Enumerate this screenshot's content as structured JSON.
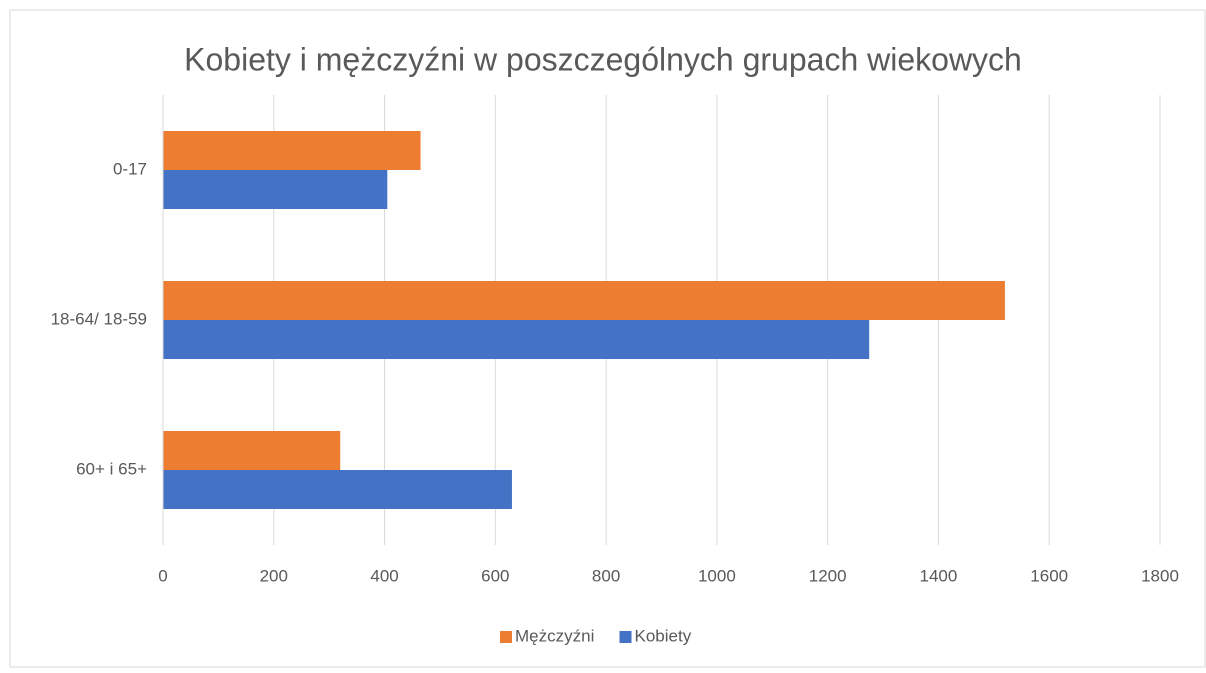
{
  "chart_data": {
    "type": "hbar",
    "title": "Kobiety i mężczyźni w poszczególnych grupach wiekowych",
    "categories": [
      "0-17",
      "18-64/ 18-59",
      "60+ i 65+"
    ],
    "series": [
      {
        "name": "Mężczyźni",
        "color": "#ed7d31",
        "values": [
          465,
          1520,
          320
        ]
      },
      {
        "name": "Kobiety",
        "color": "#4472c4",
        "values": [
          405,
          1275,
          630
        ]
      }
    ],
    "xlim": [
      0,
      1800
    ],
    "xticks": [
      0,
      200,
      400,
      600,
      800,
      1000,
      1200,
      1400,
      1600,
      1800
    ],
    "grid": true,
    "legend": "bottom"
  }
}
